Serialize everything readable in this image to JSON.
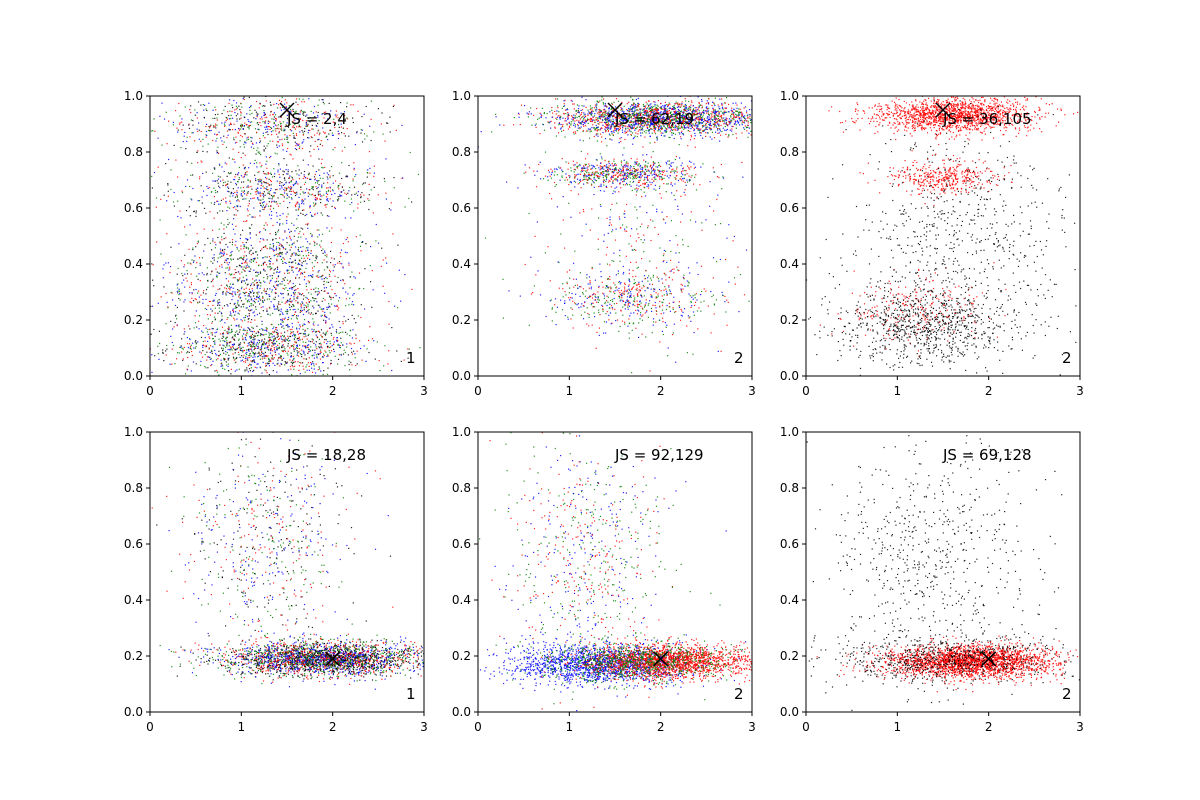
{
  "chart_data": [
    {
      "type": "scatter",
      "xlim": [
        0,
        3
      ],
      "ylim": [
        0,
        1
      ],
      "xticks": [
        "0",
        "1",
        "2",
        "3"
      ],
      "yticks": [
        "0.0",
        "0.2",
        "0.4",
        "0.6",
        "0.8",
        "1.0"
      ],
      "js_label": "JS = 2,4",
      "corner_label": "1",
      "marker": {
        "x": 1.5,
        "y": 0.95
      },
      "colors": [
        "#0000ff",
        "#ff0000",
        "#008000",
        "#000000"
      ],
      "clusters": [
        {
          "cx": 1.3,
          "cy": 0.1,
          "sx": 0.55,
          "sy": 0.05,
          "n": 1100
        },
        {
          "cx": 1.3,
          "cy": 0.27,
          "sx": 0.55,
          "sy": 0.05,
          "n": 600
        },
        {
          "cx": 1.3,
          "cy": 0.42,
          "sx": 0.55,
          "sy": 0.05,
          "n": 550
        },
        {
          "cx": 1.4,
          "cy": 0.66,
          "sx": 0.55,
          "sy": 0.05,
          "n": 650
        },
        {
          "cx": 1.3,
          "cy": 0.9,
          "sx": 0.55,
          "sy": 0.05,
          "n": 650
        },
        {
          "cx": 1.3,
          "cy": 0.5,
          "sx": 0.6,
          "sy": 0.3,
          "n": 500
        }
      ]
    },
    {
      "type": "scatter",
      "xlim": [
        0,
        3
      ],
      "ylim": [
        0,
        1
      ],
      "xticks": [
        "0",
        "1",
        "2",
        "3"
      ],
      "yticks": [
        "0.0",
        "0.2",
        "0.4",
        "0.6",
        "0.8",
        "1.0"
      ],
      "js_label": "JS = 62,19",
      "corner_label": "2",
      "marker": {
        "x": 1.5,
        "y": 0.95
      },
      "colors": [
        "#0000ff",
        "#ff0000",
        "#008000"
      ],
      "clusters": [
        {
          "cx": 2.0,
          "cy": 0.92,
          "sx": 0.6,
          "sy": 0.03,
          "n": 2400
        },
        {
          "cx": 1.6,
          "cy": 0.72,
          "sx": 0.4,
          "sy": 0.025,
          "n": 700
        },
        {
          "cx": 1.6,
          "cy": 0.28,
          "sx": 0.45,
          "sy": 0.05,
          "n": 500
        },
        {
          "cx": 1.8,
          "cy": 0.5,
          "sx": 0.6,
          "sy": 0.22,
          "n": 400
        }
      ]
    },
    {
      "type": "scatter",
      "xlim": [
        0,
        3
      ],
      "ylim": [
        0,
        1
      ],
      "xticks": [
        "0",
        "1",
        "2",
        "3"
      ],
      "yticks": [
        "0.0",
        "0.2",
        "0.4",
        "0.6",
        "0.8",
        "1.0"
      ],
      "js_label": "JS = 36,105",
      "corner_label": "2",
      "marker": {
        "x": 1.5,
        "y": 0.95
      },
      "colors": [
        "#ff0000",
        "#000000"
      ],
      "clusters": [
        {
          "cx": 1.6,
          "cy": 0.93,
          "sx": 0.45,
          "sy": 0.03,
          "n": 1500,
          "c": 0
        },
        {
          "cx": 1.5,
          "cy": 0.71,
          "sx": 0.3,
          "sy": 0.03,
          "n": 400,
          "c": 0
        },
        {
          "cx": 1.2,
          "cy": 0.25,
          "sx": 0.4,
          "sy": 0.06,
          "n": 250,
          "c": 0
        },
        {
          "cx": 1.3,
          "cy": 0.18,
          "sx": 0.5,
          "sy": 0.07,
          "n": 800,
          "c": 1
        },
        {
          "cx": 1.7,
          "cy": 0.5,
          "sx": 0.6,
          "sy": 0.22,
          "n": 700,
          "c": 1
        }
      ]
    },
    {
      "type": "scatter",
      "xlim": [
        0,
        3
      ],
      "ylim": [
        0,
        1
      ],
      "xticks": [
        "0",
        "1",
        "2",
        "3"
      ],
      "yticks": [
        "0.0",
        "0.2",
        "0.4",
        "0.6",
        "0.8",
        "1.0"
      ],
      "js_label": "JS = 18,28",
      "corner_label": "1",
      "marker": {
        "x": 2.0,
        "y": 0.19
      },
      "colors": [
        "#0000ff",
        "#ff0000",
        "#008000",
        "#000000"
      ],
      "clusters": [
        {
          "cx": 1.9,
          "cy": 0.19,
          "sx": 0.55,
          "sy": 0.03,
          "n": 3000
        },
        {
          "cx": 1.3,
          "cy": 0.6,
          "sx": 0.45,
          "sy": 0.2,
          "n": 700
        }
      ]
    },
    {
      "type": "scatter",
      "xlim": [
        0,
        3
      ],
      "ylim": [
        0,
        1
      ],
      "xticks": [
        "0",
        "1",
        "2",
        "3"
      ],
      "yticks": [
        "0.0",
        "0.2",
        "0.4",
        "0.6",
        "0.8",
        "1.0"
      ],
      "js_label": "JS = 92,129",
      "corner_label": "2",
      "marker": {
        "x": 2.0,
        "y": 0.19
      },
      "colors": [
        "#0000ff",
        "#ff0000",
        "#008000"
      ],
      "clusters": [
        {
          "cx": 1.3,
          "cy": 0.17,
          "sx": 0.5,
          "sy": 0.035,
          "n": 1500,
          "c": 0
        },
        {
          "cx": 2.1,
          "cy": 0.18,
          "sx": 0.45,
          "sy": 0.03,
          "n": 1800,
          "c": 1
        },
        {
          "cx": 1.7,
          "cy": 0.18,
          "sx": 0.5,
          "sy": 0.035,
          "n": 800,
          "c": 2
        },
        {
          "cx": 1.2,
          "cy": 0.55,
          "sx": 0.45,
          "sy": 0.22,
          "n": 700
        }
      ]
    },
    {
      "type": "scatter",
      "xlim": [
        0,
        3
      ],
      "ylim": [
        0,
        1
      ],
      "xticks": [
        "0",
        "1",
        "2",
        "3"
      ],
      "yticks": [
        "0.0",
        "0.2",
        "0.4",
        "0.6",
        "0.8",
        "1.0"
      ],
      "js_label": "JS = 69,128",
      "corner_label": "2",
      "marker": {
        "x": 2.0,
        "y": 0.19
      },
      "colors": [
        "#ff0000",
        "#000000"
      ],
      "clusters": [
        {
          "cx": 1.8,
          "cy": 0.18,
          "sx": 0.45,
          "sy": 0.03,
          "n": 2400,
          "c": 0
        },
        {
          "cx": 1.5,
          "cy": 0.19,
          "sx": 0.65,
          "sy": 0.04,
          "n": 700,
          "c": 1
        },
        {
          "cx": 1.4,
          "cy": 0.55,
          "sx": 0.55,
          "sy": 0.22,
          "n": 650,
          "c": 1
        }
      ]
    }
  ]
}
